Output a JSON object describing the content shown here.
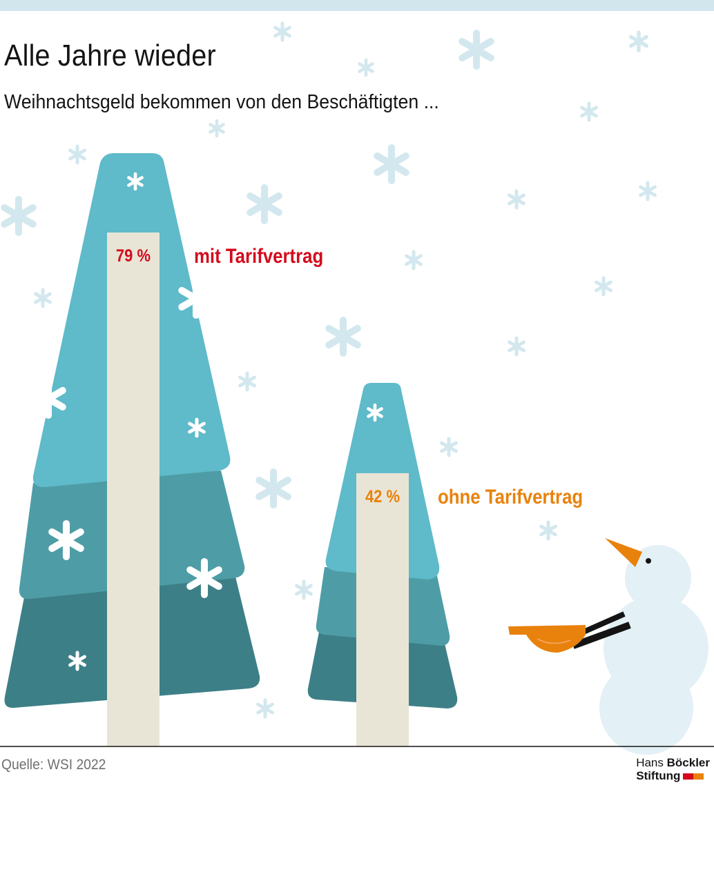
{
  "title": "Alle Jahre wieder",
  "subtitle": "Weihnachtsgeld bekommen von den Beschäftigten ...",
  "source": "Quelle: WSI 2022",
  "logo": {
    "line1_a": "Hans ",
    "line1_b": "Böckler",
    "line2": "Stiftung"
  },
  "colors": {
    "accent_mit": "#d40a1c",
    "accent_ohne": "#e8820c",
    "bar_fill": "#e9e5d6",
    "tree_light": "#5fbaca",
    "tree_mid": "#4e9da6",
    "tree_dark": "#3d7f87",
    "snowflake": "#d3e8ee",
    "snowman": "#e3f0f5"
  },
  "icons": [
    "snowflake-icon",
    "tree-icon",
    "snowman-icon",
    "carrot-nose-icon"
  ],
  "chart_data": {
    "type": "bar",
    "categories": [
      "mit Tarifvertrag",
      "ohne Tarifvertrag"
    ],
    "values": [
      79,
      42
    ],
    "value_labels": [
      "79 %",
      "42 %"
    ],
    "unit": "%",
    "ylim": [
      0,
      100
    ],
    "grid": false,
    "title": "Alle Jahre wieder",
    "subtitle": "Weihnachtsgeld bekommen von den Beschäftigten ..."
  }
}
